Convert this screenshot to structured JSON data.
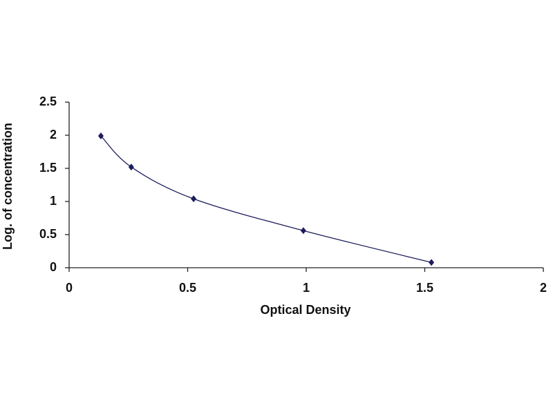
{
  "chart_data": {
    "type": "scatter",
    "x_label": "Optical Density",
    "y_label": "Log. of concentration",
    "series": [
      {
        "color": "#1c1c5c",
        "x": [
          0.134,
          0.262,
          0.525,
          0.988,
          1.528
        ],
        "values": [
          1.99,
          1.52,
          1.04,
          0.56,
          0.08
        ]
      }
    ],
    "xlim": [
      0,
      2
    ],
    "xticks": [
      0,
      0.5,
      1,
      1.5,
      2
    ],
    "ylim": [
      0,
      2.5
    ],
    "yticks": [
      0,
      0.5,
      1,
      1.5,
      2,
      2.5
    ],
    "smooth_line": true
  }
}
